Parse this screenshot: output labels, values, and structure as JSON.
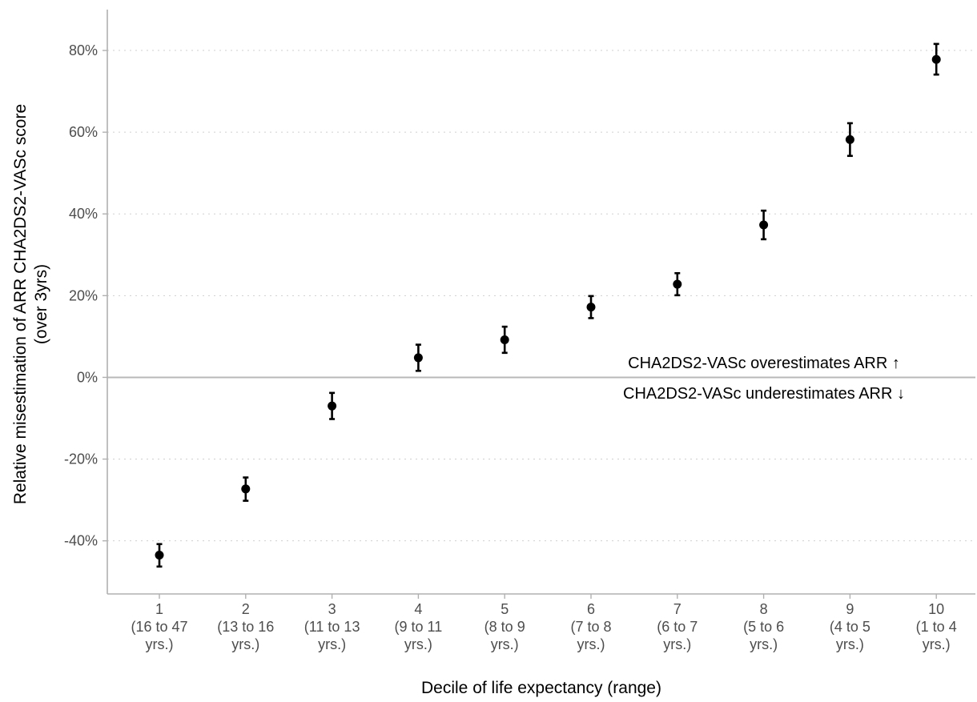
{
  "chart_data": {
    "type": "scatter",
    "title": "",
    "xlabel": "Decile of life expectancy (range)",
    "ylabel_lines": [
      "Relative misestimation of ARR CHA2DS2-VASc score",
      "(over 3yrs)"
    ],
    "ylim": [
      -53,
      90
    ],
    "y_ticks": [
      -40,
      -20,
      0,
      20,
      40,
      60,
      80
    ],
    "y_tick_labels": [
      "-40%",
      "-20%",
      "0%",
      "20%",
      "40%",
      "60%",
      "80%"
    ],
    "grid": "horizontal dotted",
    "reference_line": 0,
    "categories": [
      [
        "1",
        "(16 to 47",
        "yrs.)"
      ],
      [
        "2",
        "(13 to 16",
        "yrs.)"
      ],
      [
        "3",
        "(11 to 13",
        "yrs.)"
      ],
      [
        "4",
        "(9 to 11",
        "yrs.)"
      ],
      [
        "5",
        "(8 to 9",
        "yrs.)"
      ],
      [
        "6",
        "(7 to 8",
        "yrs.)"
      ],
      [
        "7",
        "(6 to 7",
        "yrs.)"
      ],
      [
        "8",
        "(5 to 6",
        "yrs.)"
      ],
      [
        "9",
        "(4 to 5",
        "yrs.)"
      ],
      [
        "10",
        "(1 to 4",
        "yrs.)"
      ]
    ],
    "points": [
      {
        "y": -43.5,
        "lower": -46.3,
        "upper": -40.8
      },
      {
        "y": -27.3,
        "lower": -30.2,
        "upper": -24.5
      },
      {
        "y": -7.0,
        "lower": -10.2,
        "upper": -3.8
      },
      {
        "y": 4.8,
        "lower": 1.6,
        "upper": 8.0
      },
      {
        "y": 9.2,
        "lower": 6.0,
        "upper": 12.4
      },
      {
        "y": 17.2,
        "lower": 14.5,
        "upper": 19.9
      },
      {
        "y": 22.8,
        "lower": 20.1,
        "upper": 25.5
      },
      {
        "y": 37.3,
        "lower": 33.8,
        "upper": 40.8
      },
      {
        "y": 58.2,
        "lower": 54.2,
        "upper": 62.2
      },
      {
        "y": 77.8,
        "lower": 74.1,
        "upper": 81.6
      }
    ],
    "annotations": {
      "above": "CHA2DS2-VASc overestimates ARR ↑",
      "below": "CHA2DS2-VASc underestimates ARR ↓"
    }
  }
}
